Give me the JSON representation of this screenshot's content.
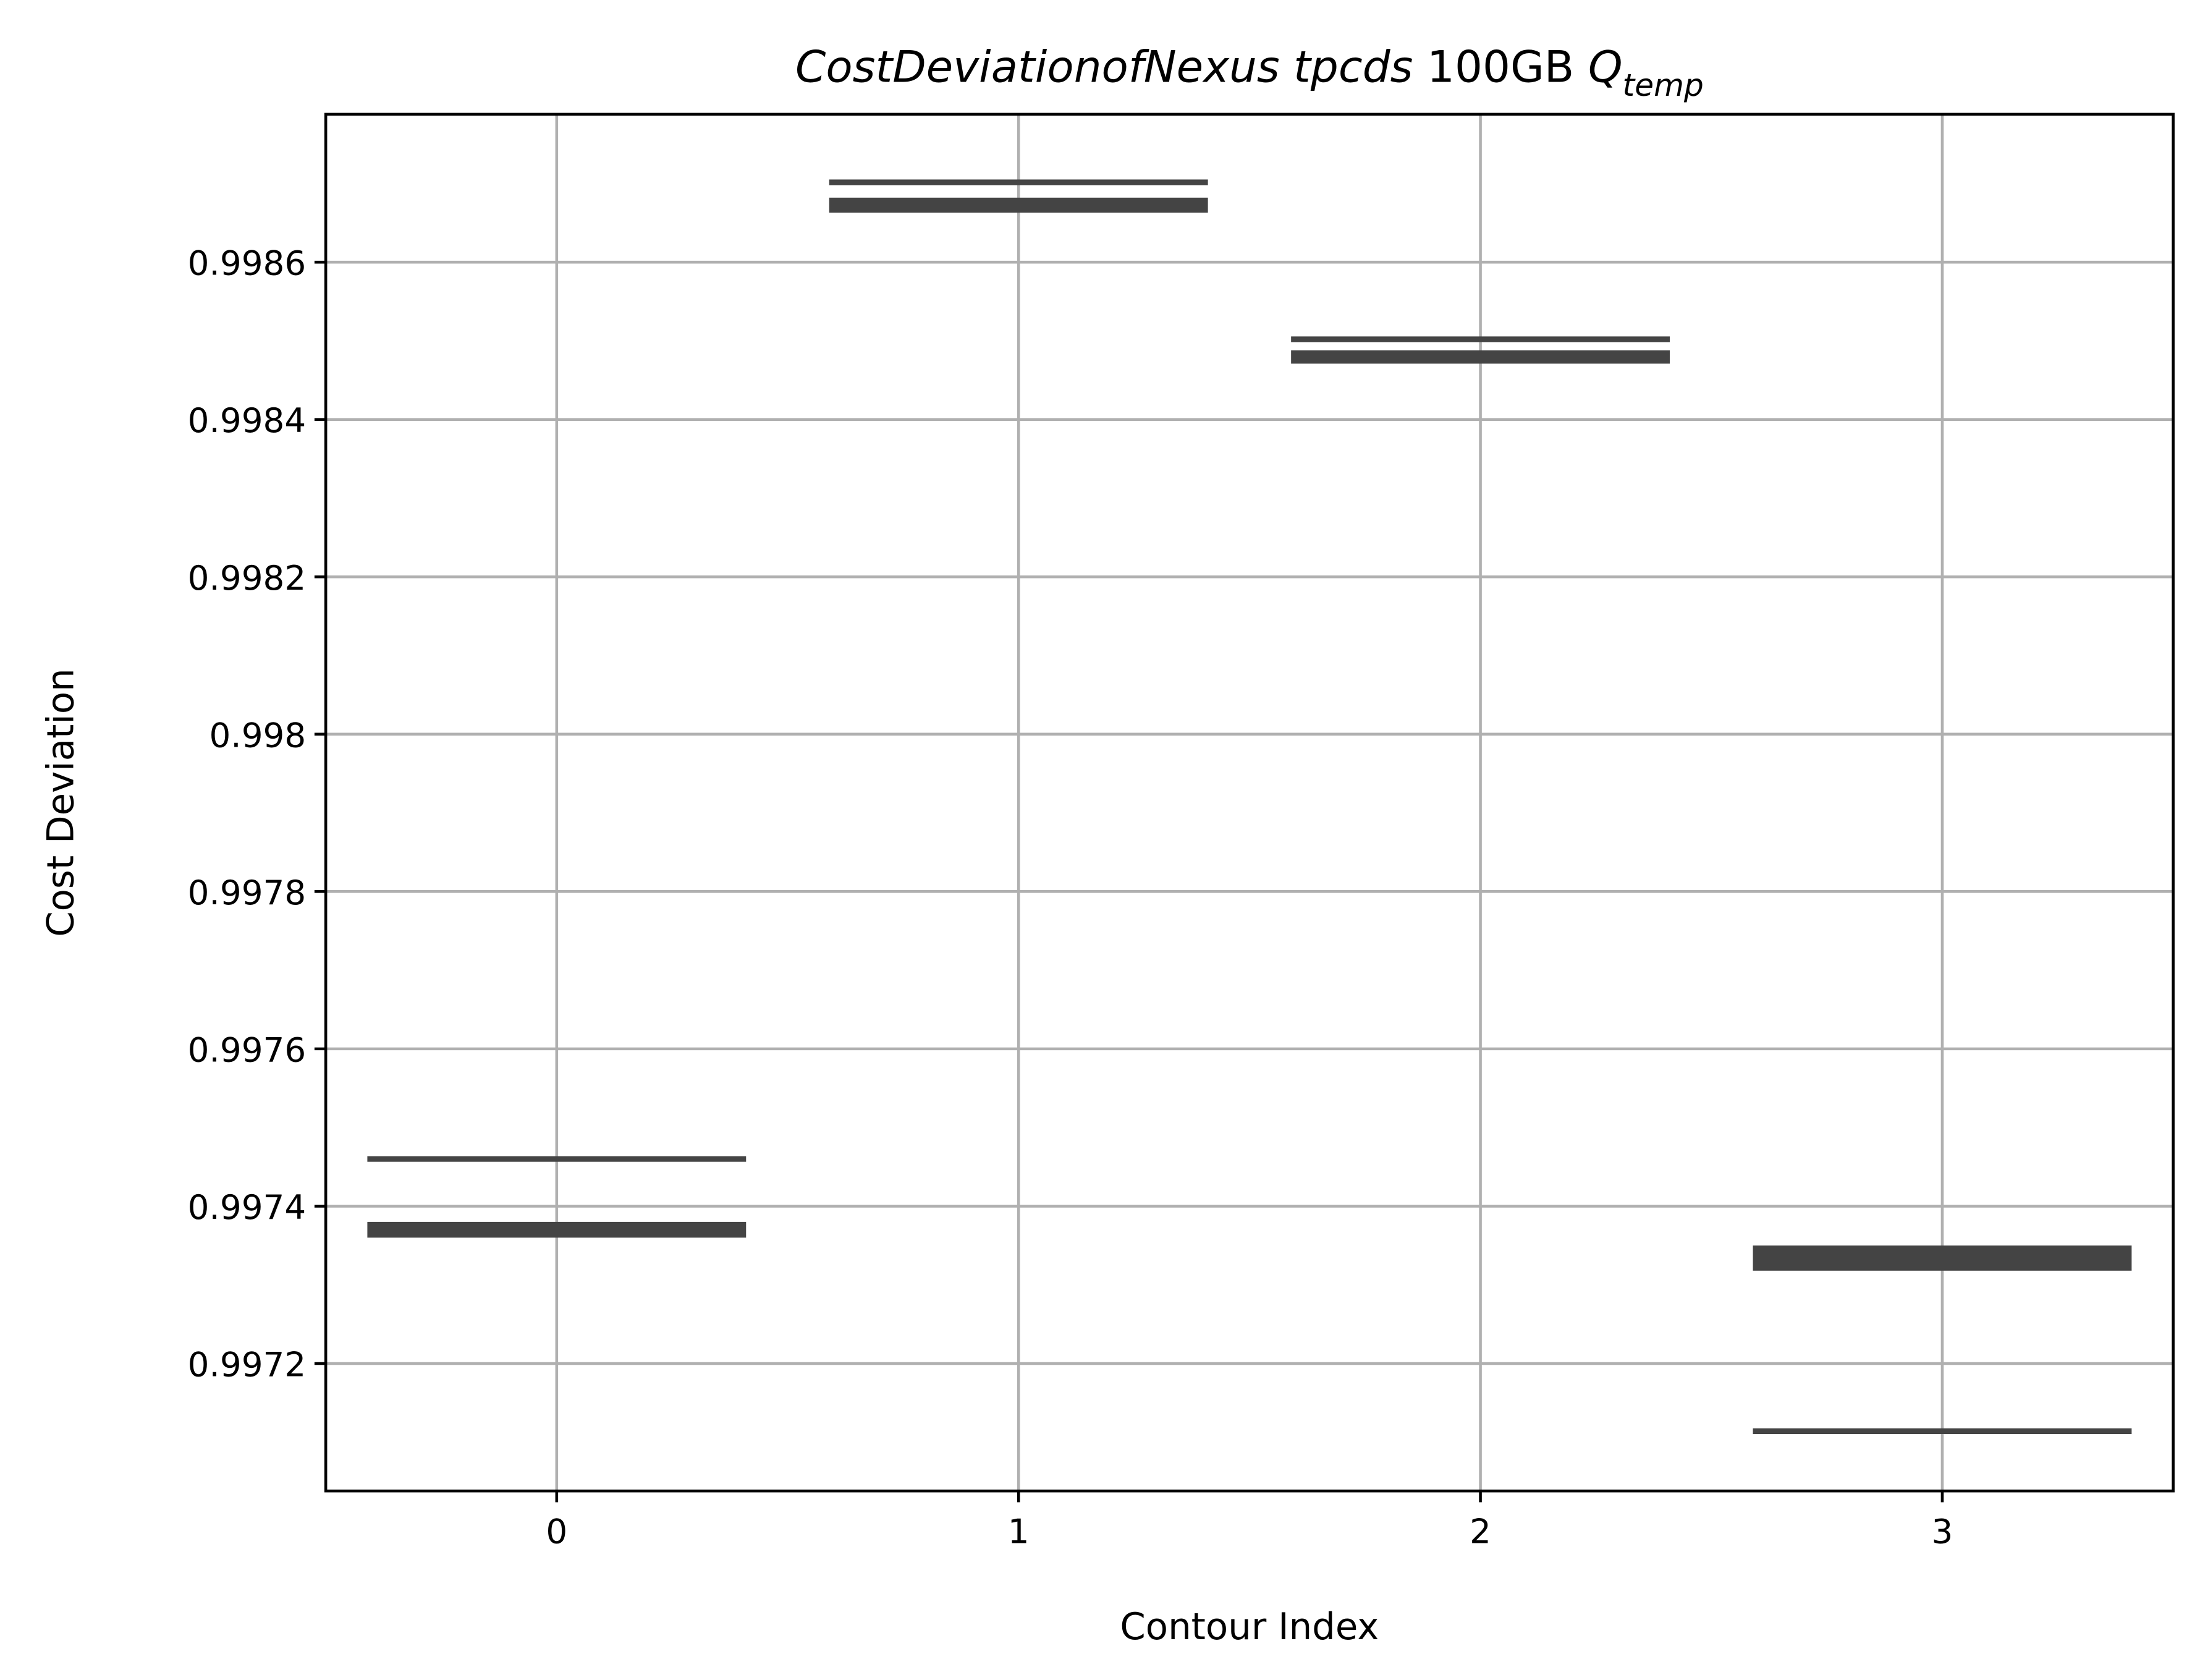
{
  "chart_data": {
    "type": "hbands",
    "title_parts": [
      "CostDeviationofNexus tpcds",
      "100GB",
      "Q"
    ],
    "title_subscript": "temp",
    "x_label": "Contour Index",
    "y_label": "Cost Deviation",
    "x": [
      0,
      1,
      2,
      3
    ],
    "values": [
      [
        [
          0.99746,
          0.99746
        ],
        [
          0.99736,
          0.99738
        ]
      ],
      [
        [
          0.998698,
          0.998705
        ],
        [
          0.998663,
          0.998682
        ]
      ],
      [
        [
          0.998502,
          0.998502
        ],
        [
          0.998471,
          0.998488
        ]
      ],
      [
        [
          0.997318,
          0.99735
        ],
        [
          0.997114,
          0.997114
        ]
      ]
    ],
    "color": "#444444",
    "xlim": [
      -0.5,
      3.5
    ],
    "xticks": [
      0,
      1,
      2,
      3
    ],
    "ylim": [
      0.997038,
      0.998788
    ],
    "yticks": [
      0.9972,
      0.9974,
      0.9976,
      0.9978,
      0.998,
      0.9982,
      0.9984,
      0.9986
    ],
    "grid": true
  }
}
